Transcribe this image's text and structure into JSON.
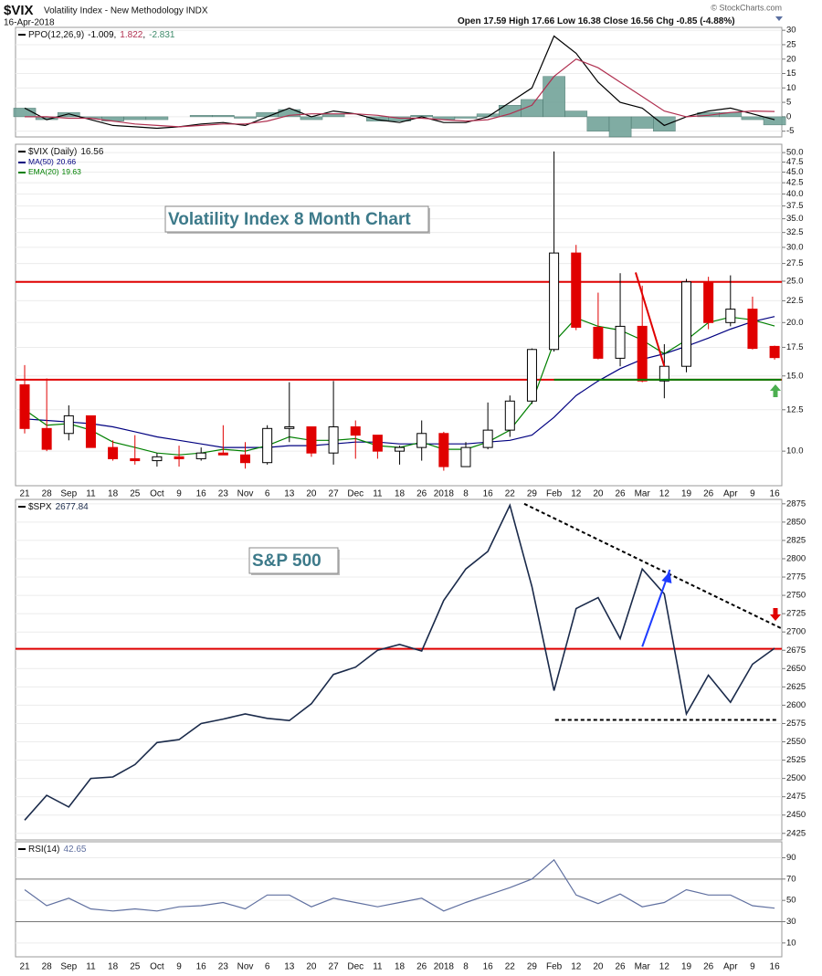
{
  "header": {
    "symbol": "$VIX",
    "name": "Volatility Index - New Methodology INDX",
    "date": "16-Apr-2018",
    "quote_labels": [
      "Open",
      "High",
      "Low",
      "Close",
      "Chg"
    ],
    "change": "-0.85 (-4.88%)",
    "credit": "© StockCharts.com"
  },
  "chart_data": [
    {
      "type": "line",
      "label": "PPO(12,26,9)",
      "separator": ",",
      "ylim": [
        -7,
        31
      ],
      "yticks": [
        -5,
        0,
        5,
        10,
        15,
        20,
        25,
        30
      ],
      "series": [
        {
          "kind": "histogram",
          "color": "#6b9e94",
          "values": [
            3,
            -1,
            1.5,
            -0.5,
            -1.5,
            -1,
            -1,
            0,
            0.5,
            0.5,
            -0.5,
            1.5,
            2.5,
            -1,
            1,
            0,
            -1.5,
            -1.5,
            0.5,
            -1,
            -0.5,
            1,
            4,
            6,
            14,
            2,
            -5,
            -7,
            -4,
            -5,
            0,
            1.5,
            1.5,
            -1,
            -2.831
          ]
        },
        {
          "kind": "line",
          "color": "#000000",
          "values": [
            3,
            -1,
            1,
            -1,
            -3,
            -3.5,
            -4,
            -3.5,
            -2.5,
            -2,
            -3,
            0,
            3,
            0,
            2,
            1,
            -1,
            -2,
            0,
            -2,
            -2,
            0,
            5,
            10,
            28,
            22,
            12,
            5,
            3,
            -3,
            0,
            2,
            3,
            1,
            -1.009
          ]
        },
        {
          "kind": "line",
          "color": "#b03050",
          "values": [
            0,
            0,
            -0.5,
            -0.5,
            -1.5,
            -2.5,
            -3,
            -3.5,
            -3,
            -2.5,
            -2.5,
            -1.5,
            0.5,
            1,
            1,
            1,
            0.5,
            -0.5,
            -0.5,
            -1,
            -1.5,
            -1,
            1,
            4,
            14,
            20,
            17,
            12,
            7,
            2,
            0,
            0.5,
            1.5,
            2,
            1.822
          ]
        }
      ]
    },
    {
      "type": "candlestick",
      "label": "$VIX (Daily)",
      "log_scale": true,
      "annotation": "Volatility Index 8 Month Chart",
      "categories": [
        "21",
        "28",
        "Sep",
        "11",
        "18",
        "25",
        "Oct",
        "9",
        "16",
        "23",
        "Nov",
        "6",
        "13",
        "20",
        "27",
        "Dec",
        "11",
        "18",
        "26",
        "2018",
        "8",
        "16",
        "22",
        "29",
        "Feb",
        "12",
        "20",
        "26",
        "Mar",
        "12",
        "19",
        "26",
        "Apr",
        "9",
        "16"
      ],
      "open": [
        14.3,
        11.3,
        11.0,
        12.1,
        10.2,
        9.6,
        9.5,
        9.7,
        9.6,
        9.9,
        9.8,
        9.4,
        11.3,
        11.4,
        9.9,
        11.4,
        10.9,
        10.0,
        10.2,
        11.0,
        9.2,
        10.2,
        11.2,
        13.1,
        17.3,
        29.1,
        19.5,
        16.5,
        19.6,
        14.6,
        15.8,
        24.9,
        20.0,
        21.5,
        17.59
      ],
      "high": [
        15.9,
        14.8,
        12.8,
        12.1,
        10.6,
        10.9,
        9.9,
        10.3,
        10.2,
        11.5,
        10.5,
        11.5,
        14.5,
        11.4,
        14.6,
        11.8,
        10.9,
        10.3,
        11.8,
        11.1,
        10.5,
        13.0,
        13.5,
        17.4,
        50.3,
        30.4,
        23.5,
        26.1,
        24.4,
        17.8,
        25.3,
        25.6,
        25.8,
        23.0,
        17.66
      ],
      "low": [
        11.0,
        10.0,
        10.6,
        10.2,
        9.5,
        9.3,
        9.2,
        9.2,
        9.5,
        9.8,
        9.1,
        9.3,
        10.5,
        9.7,
        9.3,
        9.6,
        9.6,
        9.3,
        9.5,
        9.0,
        9.2,
        10.1,
        10.8,
        12.9,
        17.1,
        19.2,
        16.4,
        15.8,
        14.5,
        13.3,
        15.3,
        19.3,
        19.6,
        17.3,
        16.38
      ],
      "close": [
        11.3,
        10.1,
        12.1,
        10.2,
        9.6,
        9.5,
        9.7,
        9.6,
        9.9,
        9.8,
        9.4,
        11.3,
        11.4,
        9.9,
        11.4,
        10.9,
        10.0,
        10.2,
        11.0,
        9.2,
        10.2,
        11.2,
        13.1,
        17.3,
        29.1,
        19.5,
        16.5,
        19.6,
        14.6,
        15.8,
        24.9,
        20.0,
        21.5,
        17.4,
        16.56
      ],
      "up_color": "#000000",
      "down_color": "#e00000",
      "series": [
        {
          "name": "MA(50)",
          "color": "#000080",
          "values": [
            11.9,
            11.8,
            11.7,
            11.6,
            11.4,
            11.1,
            10.8,
            10.6,
            10.4,
            10.2,
            10.2,
            10.2,
            10.3,
            10.3,
            10.4,
            10.5,
            10.5,
            10.4,
            10.4,
            10.4,
            10.4,
            10.5,
            10.6,
            10.9,
            12.0,
            13.5,
            14.6,
            15.6,
            16.4,
            16.9,
            17.6,
            18.4,
            19.3,
            20.1,
            20.66
          ]
        },
        {
          "name": "EMA(20)",
          "color": "#008000",
          "values": [
            12.5,
            11.5,
            11.6,
            11.2,
            10.5,
            10.2,
            9.9,
            9.8,
            9.9,
            10.1,
            10.0,
            10.3,
            10.8,
            10.6,
            10.6,
            10.7,
            10.3,
            10.2,
            10.5,
            10.1,
            10.1,
            10.5,
            11.2,
            13.0,
            18.0,
            20.5,
            19.6,
            19.2,
            18.2,
            16.9,
            18.2,
            20.0,
            20.6,
            20.3,
            19.63
          ]
        }
      ],
      "ylim": [
        8.3,
        52.3
      ],
      "yticks": [
        {
          "value": 10,
          "label": "10.0"
        },
        12.5,
        {
          "value": 15,
          "label": "15.0"
        },
        17.5,
        {
          "value": 20,
          "label": "20.0"
        },
        22.5,
        {
          "value": 25,
          "label": "25.0"
        },
        27.5,
        {
          "value": 30,
          "label": "30.0"
        },
        32.5,
        {
          "value": 35,
          "label": "35.0"
        },
        37.5,
        {
          "value": 40,
          "label": "40.0"
        },
        42.5,
        {
          "value": 45,
          "label": "45.0"
        },
        47.5,
        {
          "value": 50,
          "label": "50.0"
        }
      ],
      "hlines": [
        {
          "value": 24.9,
          "color": "#e00000"
        },
        {
          "value": 14.7,
          "color": "#e00000"
        }
      ],
      "trendlines": [
        {
          "x": [
            27.7,
            29.0
          ],
          "y": [
            26.2,
            15.8
          ],
          "color": "#e00000",
          "dashed": false
        },
        {
          "x": [
            24.0,
            34.3
          ],
          "y": [
            14.7,
            14.7
          ],
          "color": "#008000",
          "dashed": false
        }
      ]
    },
    {
      "type": "line",
      "label": "$SPX",
      "annotation": "S&P 500",
      "ylim": [
        2416,
        2881
      ],
      "yticks": [
        2425,
        2450,
        2475,
        2500,
        2525,
        2550,
        2575,
        2600,
        2625,
        2650,
        2675,
        2700,
        2725,
        2750,
        2775,
        2800,
        2825,
        2850,
        2875
      ],
      "series": [
        {
          "kind": "line",
          "color": "#1a2a4a",
          "values": [
            2443,
            2477,
            2461,
            2500,
            2502,
            2519,
            2549,
            2553,
            2575,
            2581,
            2588,
            2582,
            2579,
            2602,
            2642,
            2652,
            2675,
            2683,
            2674,
            2743,
            2786,
            2810,
            2873,
            2762,
            2620,
            2732,
            2747,
            2691,
            2786,
            2752,
            2588,
            2641,
            2604,
            2656,
            2677.84
          ]
        }
      ],
      "hlines": [
        {
          "value": 2677,
          "color": "#e00000"
        }
      ],
      "trendlines": [
        {
          "x": [
            22.65,
            34.3
          ],
          "y": [
            2875,
            2705
          ],
          "color": "#000000",
          "dashed": true
        },
        {
          "x": [
            24.05,
            34.1
          ],
          "y": [
            2580,
            2580
          ],
          "color": "#000000",
          "dashed": true
        },
        {
          "x": [
            28.0,
            29.25
          ],
          "y": [
            2680,
            2785
          ],
          "color": "#1e3cff",
          "dashed": false
        }
      ]
    },
    {
      "type": "line",
      "label": "RSI(14)",
      "categories": [
        "21",
        "28",
        "Sep",
        "11",
        "18",
        "25",
        "Oct",
        "9",
        "16",
        "23",
        "Nov",
        "6",
        "13",
        "20",
        "27",
        "Dec",
        "11",
        "18",
        "26",
        "2018",
        "8",
        "16",
        "22",
        "29",
        "Feb",
        "12",
        "20",
        "26",
        "Mar",
        "12",
        "19",
        "26",
        "Apr",
        "9",
        "16"
      ],
      "ylim": [
        -3,
        105
      ],
      "yticks": [
        10,
        30,
        50,
        70,
        90
      ],
      "series": [
        {
          "kind": "line",
          "color": "#6070a0",
          "values": [
            60,
            45,
            52,
            42,
            40,
            42,
            40,
            44,
            45,
            48,
            42,
            55,
            55,
            44,
            52,
            48,
            44,
            48,
            52,
            40,
            48,
            55,
            62,
            70,
            88,
            55,
            47,
            56,
            44,
            48,
            60,
            55,
            55,
            45,
            42.65
          ]
        }
      ],
      "hlines": [
        {
          "value": 70,
          "color": "#777777"
        },
        {
          "value": 30,
          "color": "#777777"
        }
      ],
      "trendlines": []
    }
  ]
}
